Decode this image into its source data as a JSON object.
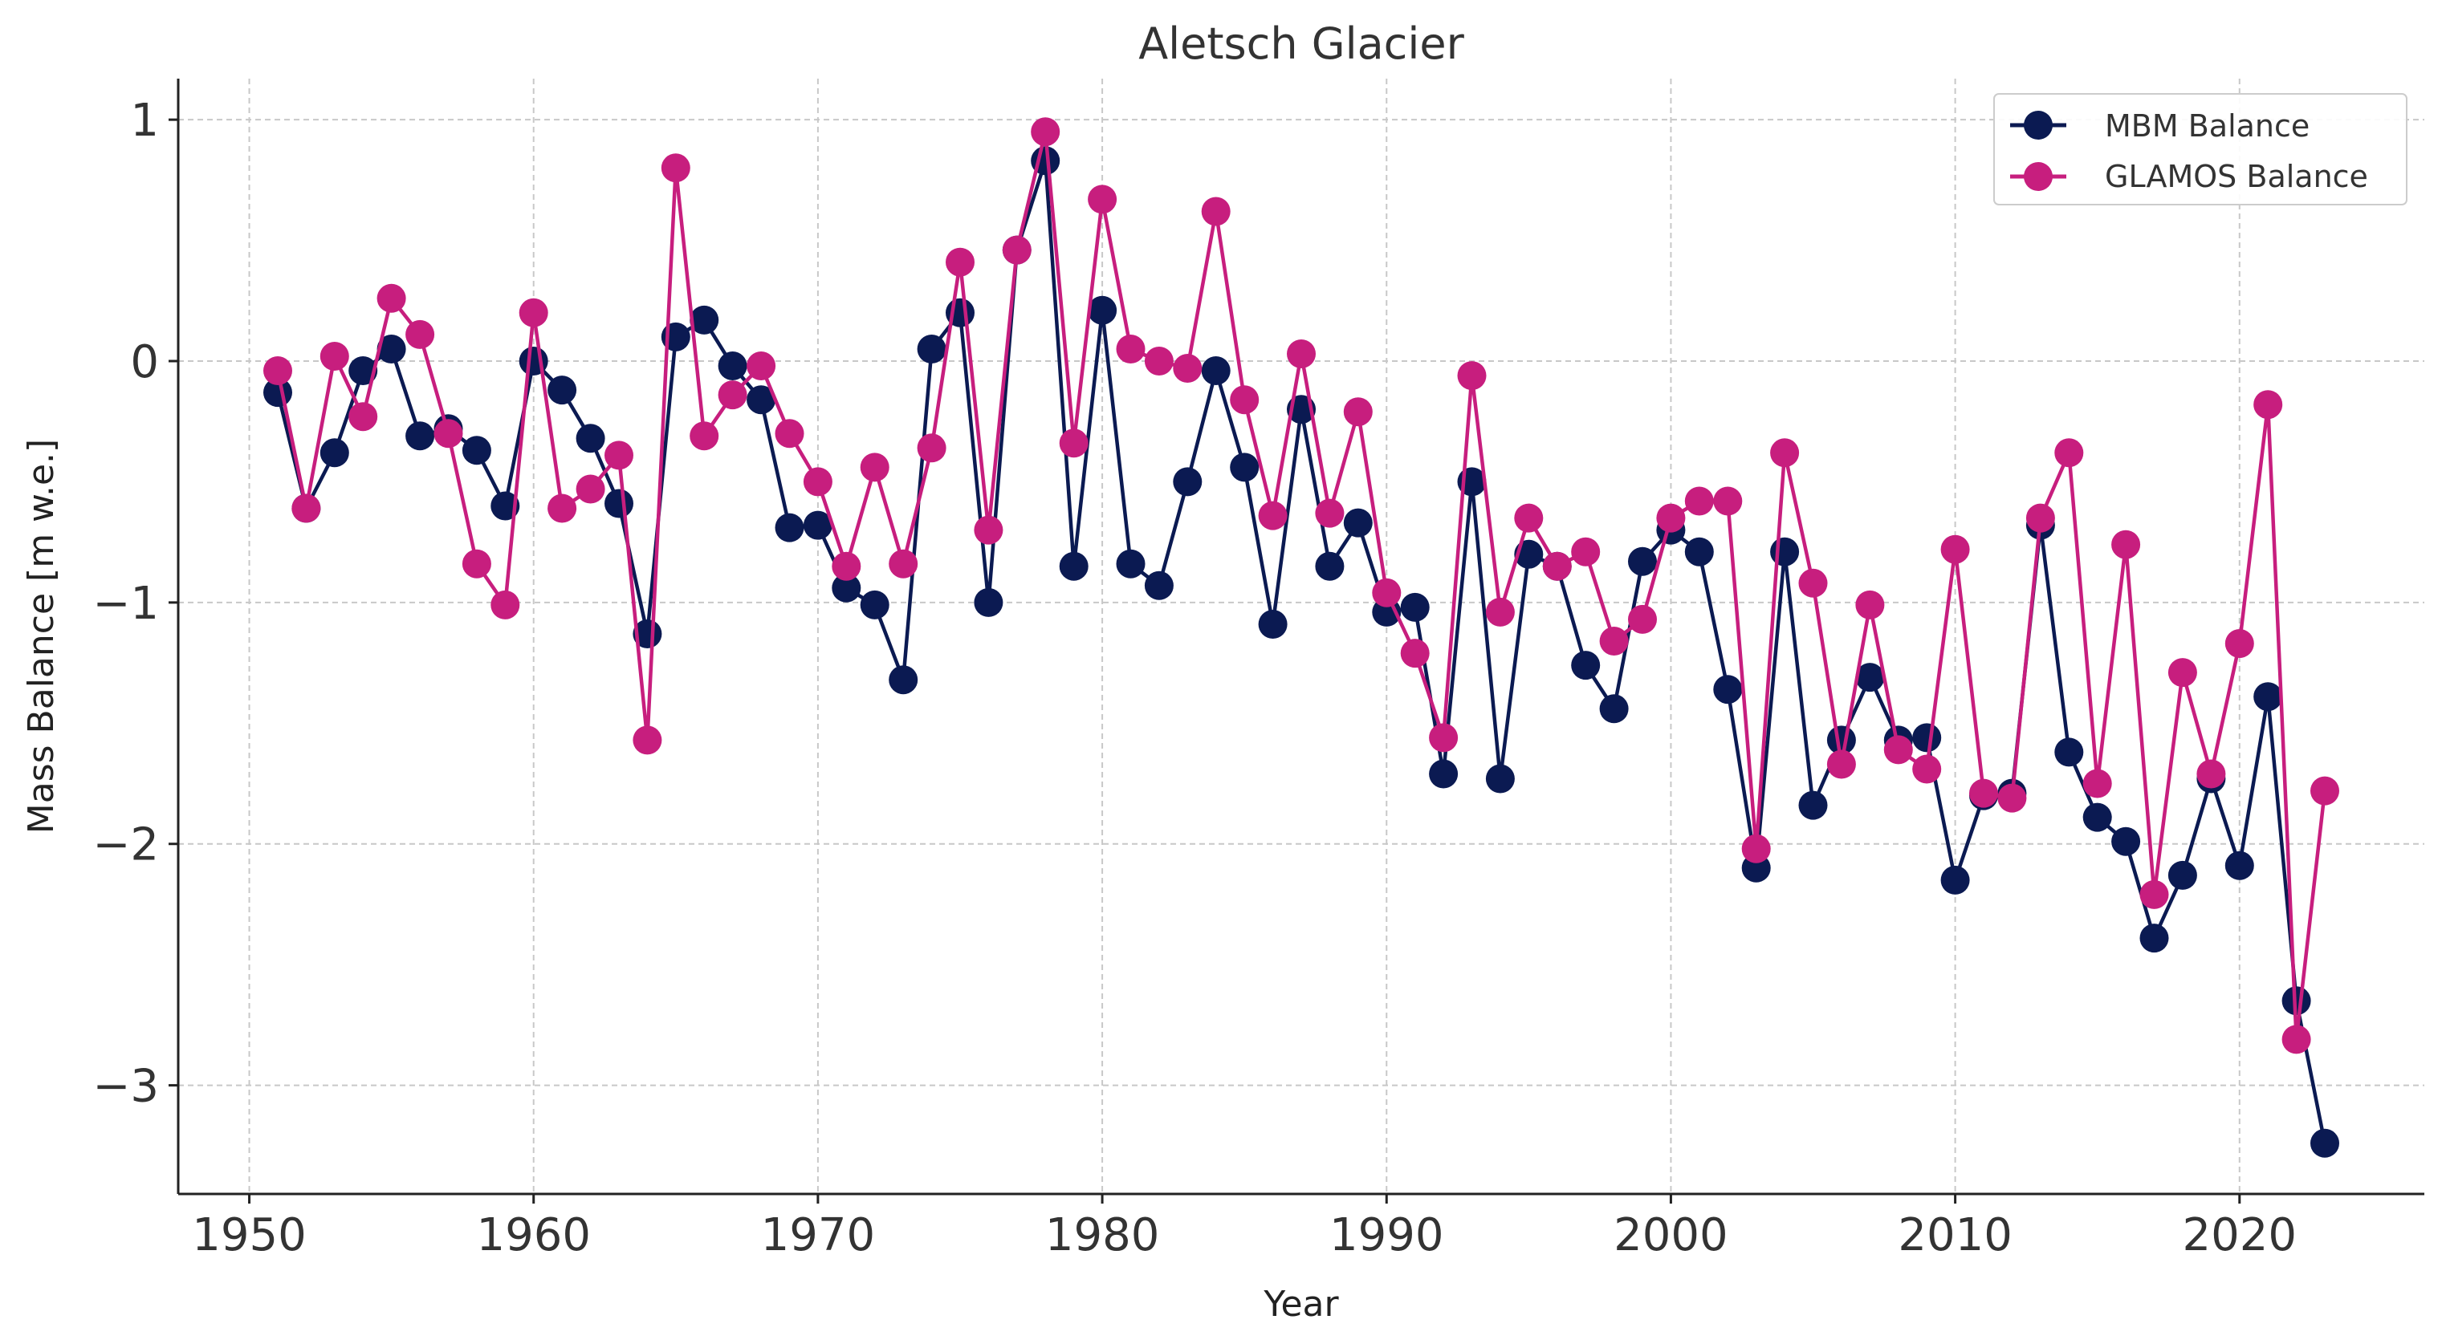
{
  "chart_data": {
    "type": "line",
    "title": "Aletsch Glacier",
    "xlabel": "Year",
    "ylabel": "Mass Balance [m w.e.]",
    "xlim": [
      1947.5,
      2026.5
    ],
    "ylim": [
      -3.45,
      1.17
    ],
    "xticks": [
      1950,
      1960,
      1970,
      1980,
      1990,
      2000,
      2010,
      2020
    ],
    "xtick_labels": [
      "1950",
      "1960",
      "1970",
      "1980",
      "1990",
      "2000",
      "2010",
      "2020"
    ],
    "yticks": [
      1,
      0,
      -1,
      -2,
      -3
    ],
    "ytick_labels": [
      "1",
      "0",
      "−1",
      "−2",
      "−3"
    ],
    "grid": true,
    "legend_position": "top-right",
    "x": [
      1951,
      1952,
      1953,
      1954,
      1955,
      1956,
      1957,
      1958,
      1959,
      1960,
      1961,
      1962,
      1963,
      1964,
      1965,
      1966,
      1967,
      1968,
      1969,
      1970,
      1971,
      1972,
      1973,
      1974,
      1975,
      1976,
      1977,
      1978,
      1979,
      1980,
      1981,
      1982,
      1983,
      1984,
      1985,
      1986,
      1987,
      1988,
      1989,
      1990,
      1991,
      1992,
      1993,
      1994,
      1995,
      1996,
      1997,
      1998,
      1999,
      2000,
      2001,
      2002,
      2003,
      2004,
      2005,
      2006,
      2007,
      2008,
      2009,
      2010,
      2011,
      2012,
      2013,
      2014,
      2015,
      2016,
      2017,
      2018,
      2019,
      2020,
      2021,
      2022,
      2023
    ],
    "series": [
      {
        "name": "MBM Balance",
        "color": "#0b1a52",
        "values": [
          -0.13,
          -0.61,
          -0.38,
          -0.04,
          0.05,
          -0.31,
          -0.28,
          -0.37,
          -0.6,
          0.0,
          -0.12,
          -0.32,
          -0.59,
          -1.13,
          0.1,
          0.17,
          -0.02,
          -0.16,
          -0.69,
          -0.68,
          -0.94,
          -1.01,
          -1.32,
          0.05,
          0.2,
          -1.0,
          0.46,
          0.83,
          -0.85,
          0.21,
          -0.84,
          -0.93,
          -0.5,
          -0.04,
          -0.44,
          -1.09,
          -0.2,
          -0.85,
          -0.67,
          -1.04,
          -1.02,
          -1.71,
          -0.5,
          -1.73,
          -0.8,
          -0.85,
          -1.26,
          -1.44,
          -0.83,
          -0.7,
          -0.79,
          -1.36,
          -2.1,
          -0.79,
          -1.84,
          -1.57,
          -1.31,
          -1.57,
          -1.56,
          -2.15,
          -1.8,
          -1.79,
          -0.68,
          -1.62,
          -1.89,
          -1.99,
          -2.39,
          -2.13,
          -1.73,
          -2.09,
          -1.39,
          -2.65,
          -3.24
        ]
      },
      {
        "name": "GLAMOS Balance",
        "color": "#c71e7e",
        "values": [
          -0.04,
          -0.61,
          0.02,
          -0.23,
          0.26,
          0.11,
          -0.3,
          -0.84,
          -1.01,
          0.2,
          -0.61,
          -0.53,
          -0.39,
          -1.57,
          0.8,
          -0.31,
          -0.14,
          -0.02,
          -0.3,
          -0.5,
          -0.85,
          -0.44,
          -0.84,
          -0.36,
          0.41,
          -0.7,
          0.46,
          0.95,
          -0.34,
          0.67,
          0.05,
          0.0,
          -0.03,
          0.62,
          -0.16,
          -0.64,
          0.03,
          -0.63,
          -0.21,
          -0.96,
          -1.21,
          -1.56,
          -0.06,
          -1.04,
          -0.65,
          -0.85,
          -0.79,
          -1.16,
          -1.07,
          -0.65,
          -0.58,
          -0.58,
          -2.02,
          -0.38,
          -0.92,
          -1.67,
          -1.01,
          -1.61,
          -1.69,
          -0.78,
          -1.79,
          -1.81,
          -0.65,
          -0.38,
          -1.75,
          -0.76,
          -2.21,
          -1.29,
          -1.71,
          -1.17,
          -0.18,
          -2.81,
          -1.78
        ]
      }
    ]
  }
}
